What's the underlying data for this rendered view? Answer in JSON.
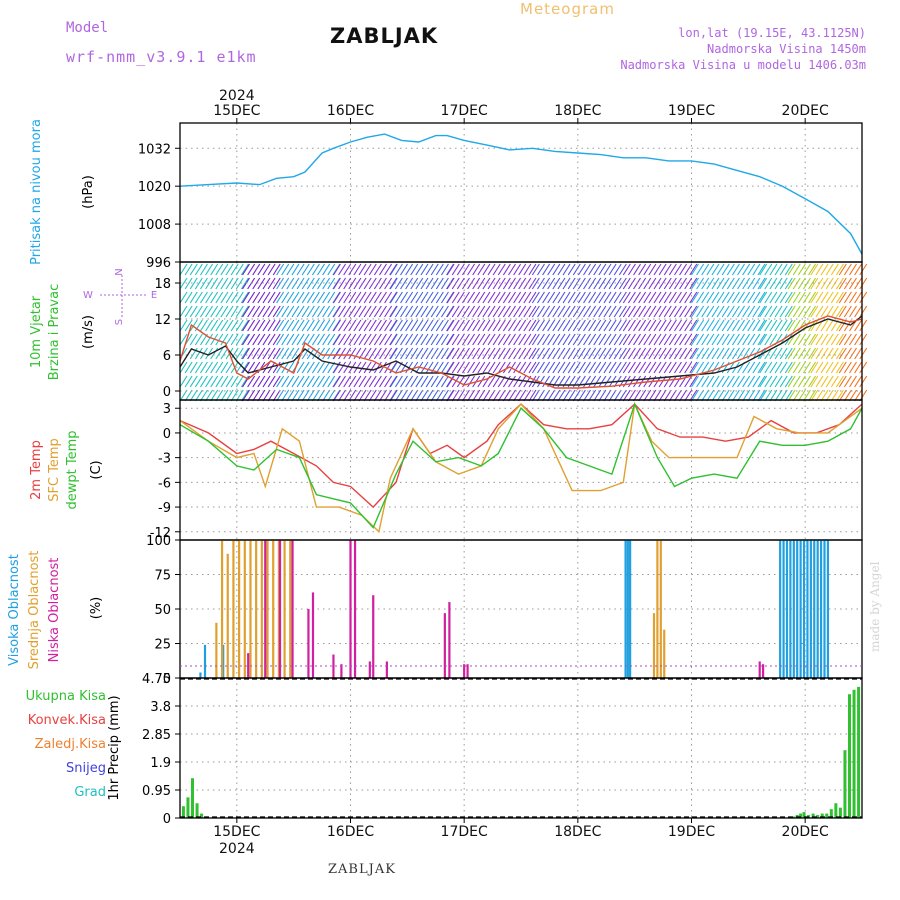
{
  "header": {
    "model_label": "Model",
    "model_value": "wrf-nmm_v3.9.1  e1km",
    "title": "ZABLJAK",
    "meteogram_label": "Meteogram",
    "coords": "lon,lat (19.15E, 43.1125N)",
    "altitude": "Nadmorska Visina 1450m",
    "model_altitude": "Nadmorska Visina u modelu 1406.03m",
    "footer": "ZABLJAK",
    "credit": "made by Angel"
  },
  "time_axis": {
    "year": "2024",
    "days": [
      "15DEC",
      "16DEC",
      "17DEC",
      "18DEC",
      "19DEC",
      "20DEC"
    ]
  },
  "chart_data": [
    {
      "type": "line",
      "panel": "pressure",
      "ylabel": "Pritisak na nivou mora",
      "unit": "(hPa)",
      "ylim": [
        996,
        1040
      ],
      "yticks": [
        996,
        1008,
        1020,
        1032
      ],
      "grid": true,
      "series": [
        {
          "color": "#20a8e8",
          "x": [
            14.5,
            14.75,
            15.0,
            15.2,
            15.35,
            15.5,
            15.6,
            15.75,
            15.85,
            16.0,
            16.15,
            16.3,
            16.45,
            16.6,
            16.75,
            16.85,
            17.0,
            17.2,
            17.4,
            17.6,
            17.8,
            18.0,
            18.2,
            18.4,
            18.6,
            18.8,
            19.0,
            19.2,
            19.4,
            19.6,
            19.8,
            20.0,
            20.2,
            20.4,
            20.5
          ],
          "values": [
            1020,
            1020.5,
            1021,
            1020.5,
            1022.5,
            1023,
            1024.5,
            1030.5,
            1032,
            1034,
            1035.5,
            1036.5,
            1034.5,
            1034,
            1036,
            1036,
            1034.5,
            1033,
            1031.5,
            1032,
            1031,
            1030.5,
            1030,
            1029,
            1029,
            1028,
            1028,
            1027,
            1025,
            1023,
            1020,
            1016,
            1012,
            1005,
            998.5
          ]
        }
      ]
    },
    {
      "type": "line",
      "panel": "wind",
      "ylabel": "10m Vjetar Brzina i Pravac",
      "unit": "(m/s)",
      "direction_legend": [
        "N",
        "E",
        "S",
        "W"
      ],
      "ylim": [
        -1.5,
        21.5
      ],
      "yticks": [
        0,
        6,
        12,
        18
      ],
      "grid": true,
      "series": [
        {
          "color": "#222222",
          "x": [
            14.5,
            14.6,
            14.75,
            14.9,
            15.0,
            15.1,
            15.3,
            15.5,
            15.6,
            15.75,
            16.0,
            16.2,
            16.4,
            16.6,
            16.8,
            17.0,
            17.2,
            17.4,
            17.6,
            17.8,
            18.0,
            18.3,
            18.6,
            18.9,
            19.2,
            19.4,
            19.6,
            19.8,
            20.0,
            20.2,
            20.4,
            20.5
          ],
          "values": [
            4,
            7,
            6,
            7.5,
            5,
            3,
            4,
            5,
            7,
            5,
            4,
            3.5,
            5,
            3,
            3,
            2.5,
            3,
            2,
            1.5,
            1,
            1,
            1.5,
            2,
            2.5,
            3,
            4,
            6,
            8,
            10.5,
            12,
            11,
            12.5
          ]
        },
        {
          "color": "#e05030",
          "x": [
            14.5,
            14.6,
            14.75,
            14.9,
            15.0,
            15.1,
            15.3,
            15.5,
            15.6,
            15.75,
            16.0,
            16.2,
            16.4,
            16.6,
            16.8,
            17.0,
            17.2,
            17.4,
            17.6,
            17.8,
            18.0,
            18.3,
            18.6,
            18.9,
            19.2,
            19.4,
            19.6,
            19.8,
            20.0,
            20.2,
            20.4,
            20.5
          ],
          "values": [
            5,
            11,
            9,
            8,
            3,
            2,
            5,
            3,
            8,
            6,
            6,
            5,
            3,
            4,
            3,
            1,
            2,
            4,
            2,
            0.5,
            0.5,
            0.8,
            1.5,
            2,
            3.5,
            5,
            6.5,
            8.5,
            11,
            12.5,
            11.5,
            12
          ]
        }
      ]
    },
    {
      "type": "line",
      "panel": "temperature",
      "ylabel": [
        "2m Temp",
        "SFC Temp",
        "dewpt Temp"
      ],
      "unit": "(C)",
      "ylim": [
        -13,
        4
      ],
      "yticks": [
        -12,
        -9,
        -6,
        -3,
        0,
        3
      ],
      "grid": true,
      "series": [
        {
          "name": "2m Temp",
          "color": "#e84040",
          "x": [
            14.5,
            14.75,
            15.0,
            15.15,
            15.3,
            15.5,
            15.7,
            15.85,
            16.0,
            16.2,
            16.4,
            16.55,
            16.7,
            16.85,
            17.0,
            17.2,
            17.3,
            17.5,
            17.7,
            17.9,
            18.1,
            18.3,
            18.5,
            18.7,
            18.9,
            19.1,
            19.3,
            19.5,
            19.7,
            19.9,
            20.1,
            20.3,
            20.5
          ],
          "values": [
            1.5,
            0,
            -2.5,
            -2,
            -1,
            -2.5,
            -4,
            -6,
            -6.5,
            -9,
            -6,
            0.5,
            -2.5,
            -1.5,
            -3,
            -1,
            1,
            3.5,
            1,
            0.5,
            0.5,
            1,
            3.5,
            0.5,
            -0.5,
            -0.5,
            -1,
            -0.5,
            1.5,
            0,
            0,
            1,
            3.5
          ]
        },
        {
          "name": "SFC Temp",
          "color": "#e0a030",
          "x": [
            14.5,
            14.75,
            15.0,
            15.15,
            15.25,
            15.4,
            15.55,
            15.7,
            15.9,
            16.1,
            16.25,
            16.35,
            16.55,
            16.75,
            16.95,
            17.15,
            17.3,
            17.5,
            17.7,
            17.95,
            18.2,
            18.4,
            18.5,
            18.65,
            18.8,
            18.95,
            19.2,
            19.4,
            19.55,
            19.75,
            19.95,
            20.2,
            20.5
          ],
          "values": [
            1.5,
            -1,
            -3,
            -2.5,
            -6.5,
            0.5,
            -1,
            -9,
            -9,
            -10,
            -12,
            -5.5,
            0.5,
            -3.5,
            -5,
            -4,
            0.5,
            3.5,
            0.5,
            -7,
            -7,
            -6,
            3.5,
            -1,
            -3,
            -3,
            -3,
            -3,
            2,
            0.5,
            0,
            0,
            3
          ]
        },
        {
          "name": "dewpt Temp",
          "color": "#30c030",
          "x": [
            14.5,
            14.75,
            15.0,
            15.15,
            15.35,
            15.55,
            15.7,
            15.85,
            16.0,
            16.2,
            16.4,
            16.55,
            16.75,
            16.95,
            17.15,
            17.3,
            17.5,
            17.7,
            17.9,
            18.1,
            18.3,
            18.5,
            18.7,
            18.85,
            19.0,
            19.2,
            19.4,
            19.6,
            19.8,
            20.0,
            20.2,
            20.4,
            20.5
          ],
          "values": [
            1,
            -1,
            -4,
            -4.5,
            -2,
            -3,
            -7.5,
            -8,
            -8.5,
            -11.5,
            -5,
            -1,
            -3.5,
            -3,
            -4,
            -2.5,
            3,
            0.5,
            -3,
            -4,
            -5,
            3.5,
            -3,
            -6.5,
            -5.5,
            -5,
            -5.5,
            -1,
            -1.5,
            -1.5,
            -1,
            0.5,
            3
          ]
        }
      ]
    },
    {
      "type": "bar",
      "panel": "cloud_cover",
      "ylabel": [
        "Visoka Oblacnost",
        "Srednja Oblacnost",
        "Niska Oblacnost"
      ],
      "unit": "(%)",
      "ylim": [
        0,
        100
      ],
      "yticks": [
        0,
        25,
        50,
        75,
        100
      ],
      "grid": true,
      "series": [
        {
          "name": "Visoka Oblacnost",
          "color": "#20a0e0",
          "x": [
            14.68,
            14.72,
            14.88,
            18.42,
            18.44,
            18.46,
            19.78,
            19.81,
            19.84,
            19.87,
            19.9,
            19.93,
            19.96,
            19.99,
            20.02,
            20.05,
            20.08,
            20.11,
            20.14,
            20.17,
            20.2
          ],
          "values": [
            4,
            24,
            24,
            100,
            100,
            100,
            100,
            100,
            100,
            100,
            100,
            100,
            100,
            100,
            100,
            100,
            100,
            100,
            100,
            100,
            100
          ]
        },
        {
          "name": "Srednja Oblacnost",
          "color": "#e0a030",
          "x": [
            14.82,
            14.87,
            14.92,
            14.97,
            15.02,
            15.07,
            15.12,
            15.17,
            15.22,
            15.27,
            15.32,
            15.37,
            15.42,
            15.47,
            18.67,
            18.7,
            18.73,
            18.76
          ],
          "values": [
            40,
            100,
            90,
            100,
            100,
            100,
            100,
            100,
            100,
            100,
            100,
            100,
            100,
            100,
            47,
            100,
            100,
            35
          ]
        },
        {
          "name": "Niska Oblacnost",
          "color": "#d020a0",
          "x": [
            15.1,
            15.25,
            15.38,
            15.49,
            15.63,
            15.67,
            15.85,
            15.92,
            16.0,
            16.04,
            16.17,
            16.2,
            16.32,
            16.83,
            16.87,
            17.0,
            17.03,
            19.6,
            19.63
          ],
          "values": [
            18,
            100,
            100,
            100,
            50,
            62,
            17,
            10,
            100,
            100,
            12,
            60,
            12,
            47,
            55,
            10,
            10,
            12,
            10
          ]
        }
      ]
    },
    {
      "type": "bar",
      "panel": "precipitation",
      "ylabel": "1hr Precip (mm)",
      "unit": "(mm)",
      "legend": [
        "Ukupna  Kisa",
        "Konvek.Kisa",
        "Zaledj.Kisa",
        "Snijeg",
        "Grad"
      ],
      "legend_colors": [
        "#30c030",
        "#e84040",
        "#f08030",
        "#4040e0",
        "#20c0c0"
      ],
      "ylim": [
        0,
        4.75
      ],
      "yticks": [
        0,
        0.95,
        1.9,
        2.85,
        3.8,
        4.75
      ],
      "grid": true,
      "series": [
        {
          "name": "Ukupna  Kisa",
          "color": "#30c030",
          "x": [
            14.53,
            14.57,
            14.61,
            14.65,
            14.69,
            19.9,
            19.93,
            19.96,
            19.99,
            20.03,
            20.07,
            20.11,
            20.15,
            20.19,
            20.23,
            20.27,
            20.31,
            20.35,
            20.39,
            20.43,
            20.47
          ],
          "values": [
            0.4,
            0.7,
            1.35,
            0.5,
            0.15,
            0.05,
            0.1,
            0.15,
            0.2,
            0.1,
            0.15,
            0.1,
            0.15,
            0.15,
            0.3,
            0.5,
            0.35,
            2.3,
            4.2,
            4.35,
            4.45
          ]
        }
      ]
    }
  ]
}
